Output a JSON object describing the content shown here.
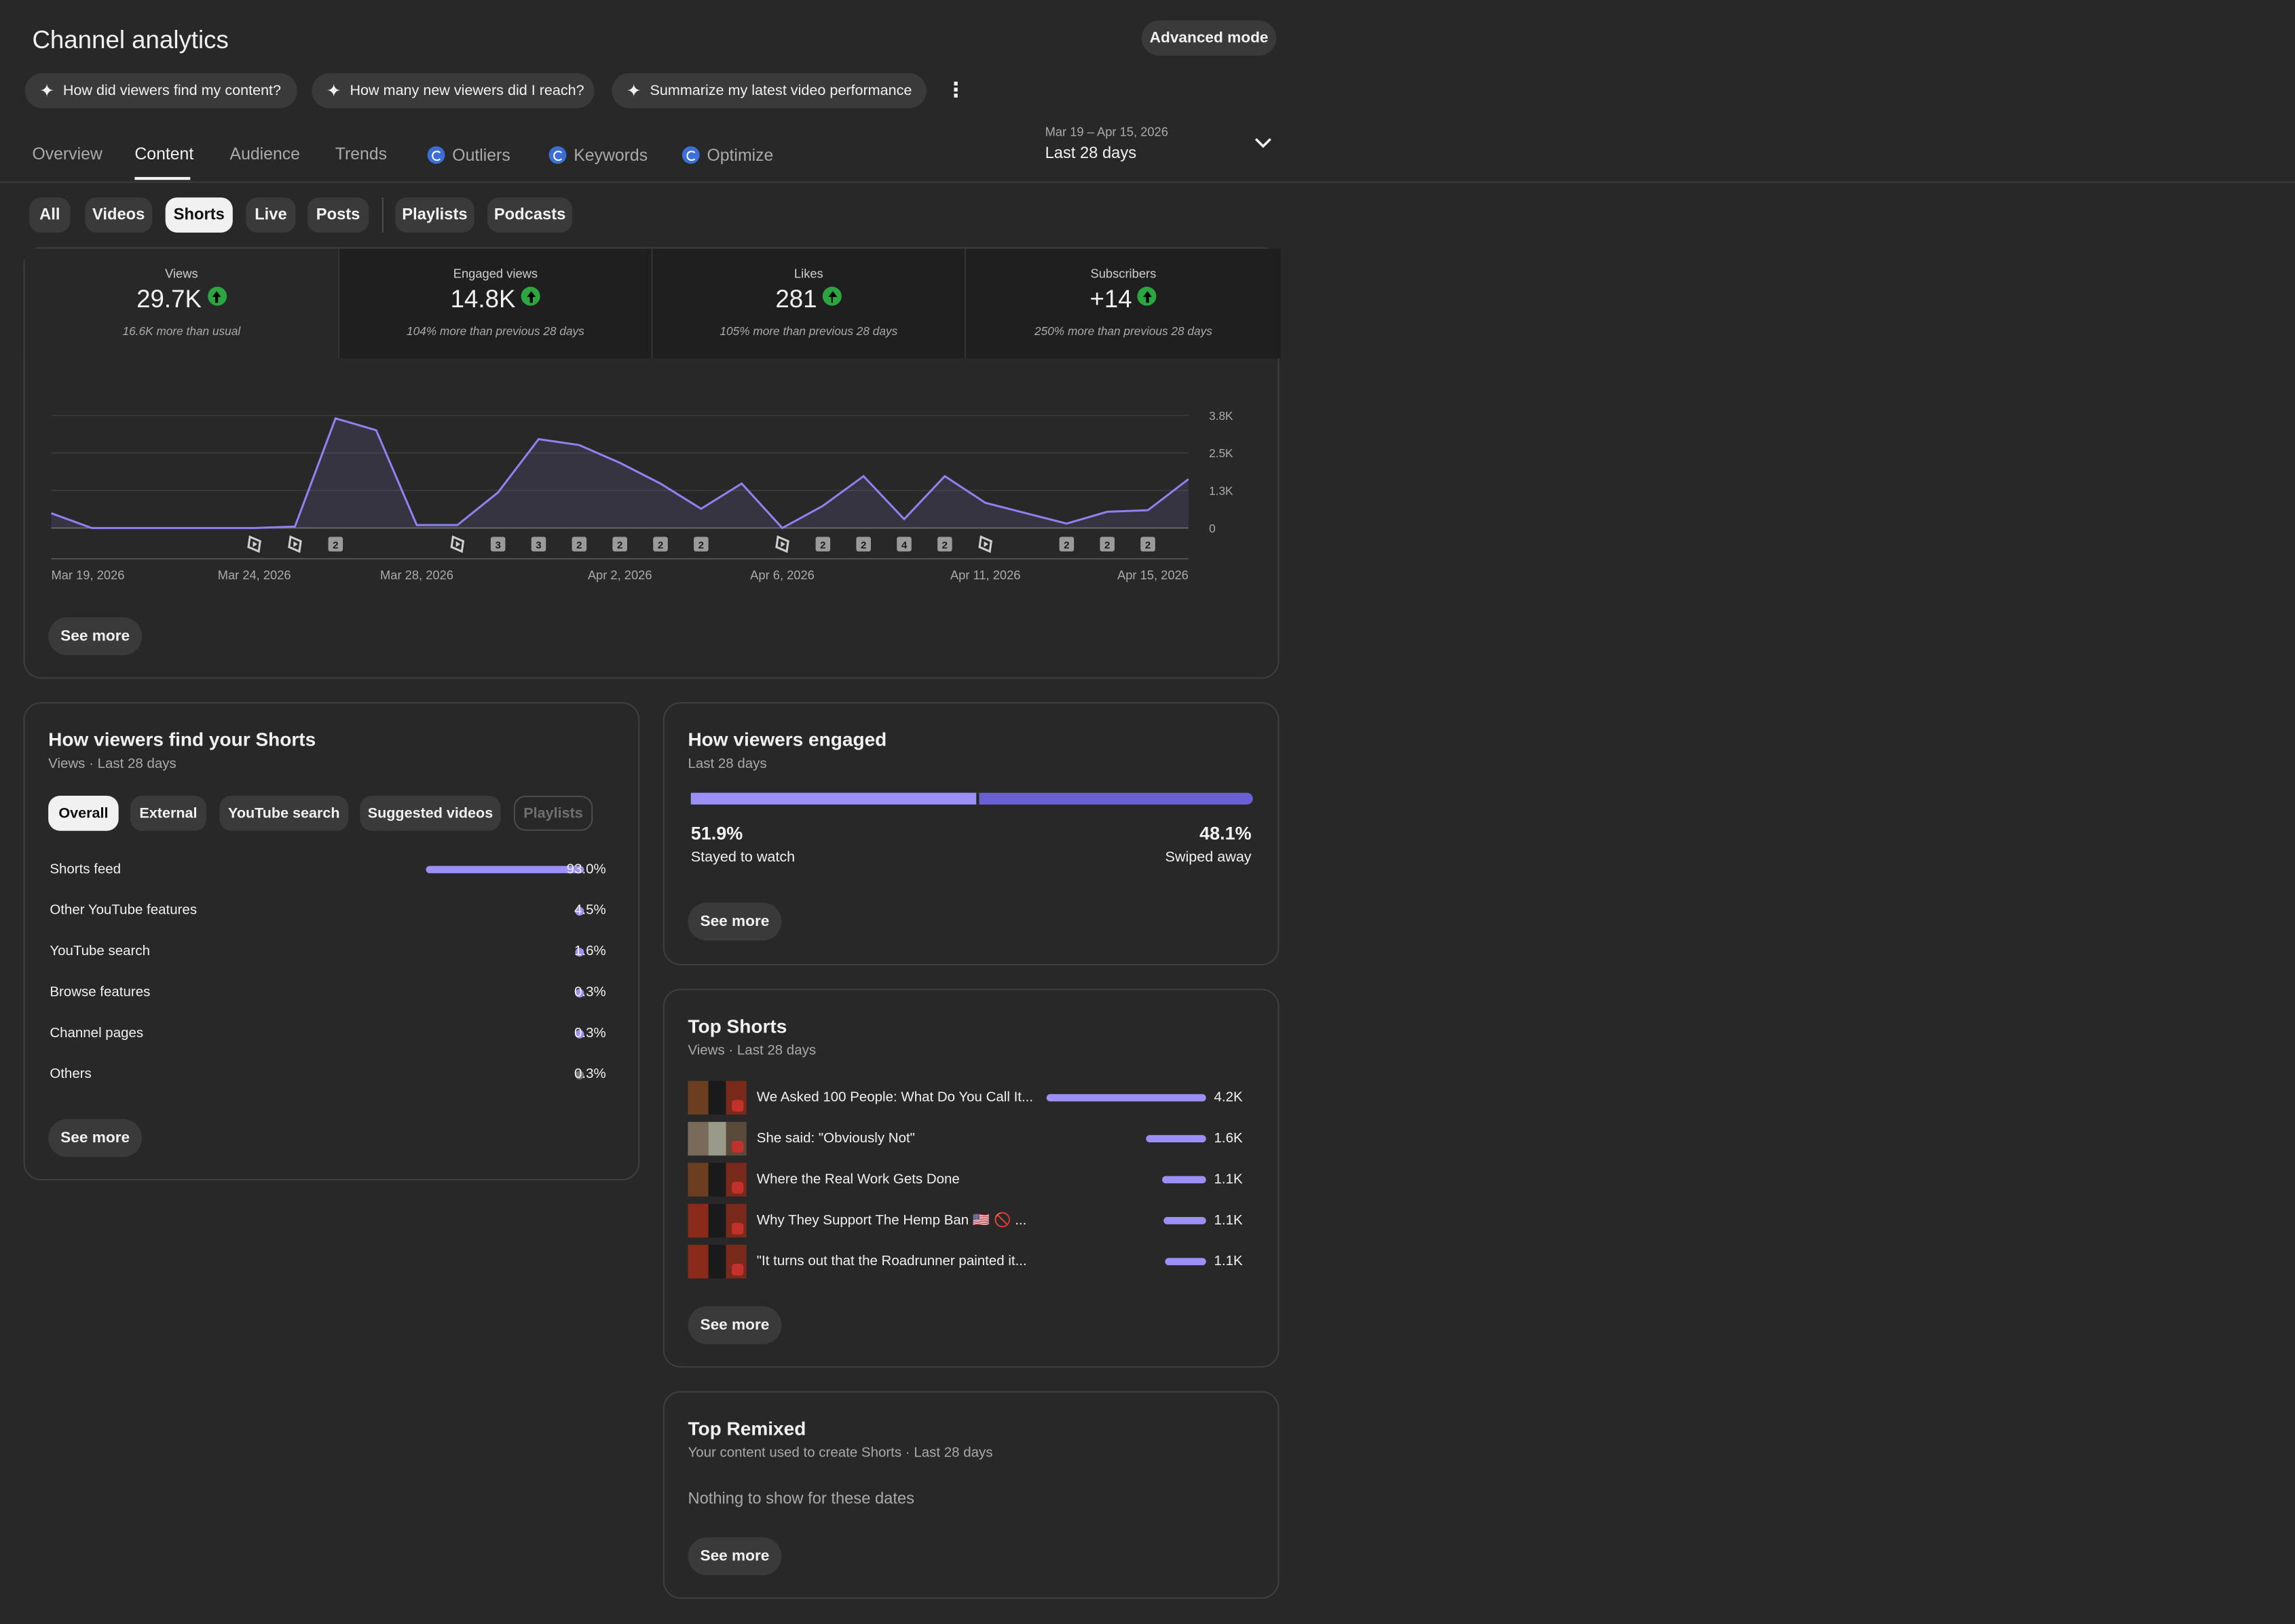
{
  "header": {
    "title": "Channel analytics",
    "advanced_mode": "Advanced mode"
  },
  "suggestions": [
    "How did viewers find my content?",
    "How many new viewers did I reach?",
    "Summarize my latest video performance"
  ],
  "tabs": [
    "Overview",
    "Content",
    "Audience",
    "Trends",
    "Outliers",
    "Keywords",
    "Optimize"
  ],
  "active_tab": "Content",
  "date_range": {
    "range": "Mar 19 – Apr 15, 2026",
    "label": "Last 28 days"
  },
  "filters": [
    "All",
    "Videos",
    "Shorts",
    "Live",
    "Posts",
    "Playlists",
    "Podcasts"
  ],
  "active_filter": "Shorts",
  "metrics": [
    {
      "label": "Views",
      "value": "29.7K",
      "note": "16.6K more than usual"
    },
    {
      "label": "Engaged views",
      "value": "14.8K",
      "note": "104% more than previous 28 days"
    },
    {
      "label": "Likes",
      "value": "281",
      "note": "105% more than previous 28 days"
    },
    {
      "label": "Subscribers",
      "value": "+14",
      "note": "250% more than previous 28 days"
    }
  ],
  "chart_data": {
    "type": "area",
    "series": [
      {
        "values": [
          500,
          0,
          0,
          0,
          0,
          0,
          50,
          3700,
          3300,
          100,
          100,
          1200,
          3000,
          2800,
          2200,
          1500,
          650,
          1500,
          0,
          750,
          1750,
          300,
          1750,
          850,
          500,
          150,
          550,
          600,
          1650
        ]
      }
    ],
    "x_tick_labels": [
      "Mar 19, 2026",
      "Mar 24, 2026",
      "Mar 28, 2026",
      "Apr 2, 2026",
      "Apr 6, 2026",
      "Apr 11, 2026",
      "Apr 15, 2026"
    ],
    "y_tick_labels": [
      "0",
      "1.3K",
      "2.5K",
      "3.8K"
    ],
    "ylim": [
      0,
      3800
    ],
    "grid": true,
    "publish_markers": [
      {
        "day": 5,
        "label": "shorts-icon"
      },
      {
        "day": 6,
        "label": "shorts-icon"
      },
      {
        "day": 7,
        "label": "2"
      },
      {
        "day": 10,
        "label": "shorts-icon"
      },
      {
        "day": 11,
        "label": "3"
      },
      {
        "day": 12,
        "label": "3"
      },
      {
        "day": 13,
        "label": "2"
      },
      {
        "day": 14,
        "label": "2"
      },
      {
        "day": 15,
        "label": "2"
      },
      {
        "day": 16,
        "label": "2"
      },
      {
        "day": 18,
        "label": "shorts-icon"
      },
      {
        "day": 19,
        "label": "2"
      },
      {
        "day": 20,
        "label": "2"
      },
      {
        "day": 21,
        "label": "4"
      },
      {
        "day": 22,
        "label": "2"
      },
      {
        "day": 23,
        "label": "shorts-icon"
      },
      {
        "day": 25,
        "label": "2"
      },
      {
        "day": 26,
        "label": "2"
      },
      {
        "day": 27,
        "label": "2"
      }
    ]
  },
  "see_more": "See more",
  "find": {
    "title": "How viewers find your Shorts",
    "subtitle": "Views · Last 28 days",
    "chips": [
      "Overall",
      "External",
      "YouTube search",
      "Suggested videos",
      "Playlists"
    ],
    "sources": [
      {
        "name": "Shorts feed",
        "pct": "93.0%",
        "value": 93.0
      },
      {
        "name": "Other YouTube features",
        "pct": "4.5%",
        "value": 4.5
      },
      {
        "name": "YouTube search",
        "pct": "1.6%",
        "value": 1.6
      },
      {
        "name": "Browse features",
        "pct": "0.3%",
        "value": 0.3
      },
      {
        "name": "Channel pages",
        "pct": "0.3%",
        "value": 0.3
      },
      {
        "name": "Others",
        "pct": "0.3%",
        "value": 0.3
      }
    ]
  },
  "engaged": {
    "title": "How viewers engaged",
    "subtitle": "Last 28 days",
    "stayed_pct": "51.9%",
    "stayed_label": "Stayed to watch",
    "swiped_pct": "48.1%",
    "swiped_label": "Swiped away",
    "stayed_value": 51.9
  },
  "top_shorts": {
    "title": "Top Shorts",
    "subtitle": "Views · Last 28 days",
    "items": [
      {
        "title": "We Asked 100 People: What Do You Call It...",
        "views": "4.2K",
        "value": 4.2
      },
      {
        "title": "She said: \"Obviously Not\"",
        "views": "1.6K",
        "value": 1.6
      },
      {
        "title": "Where the Real Work Gets Done",
        "views": "1.1K",
        "value": 1.1
      },
      {
        "title": "Why They Support The Hemp Ban 🇺🇸 🚫 ...",
        "views": "1.1K",
        "value": 1.1
      },
      {
        "title": "\"It turns out that the Roadrunner painted it...",
        "views": "1.1K",
        "value": 1.1
      }
    ]
  },
  "remixed": {
    "title": "Top Remixed",
    "subtitle": "Your content used to create Shorts · Last 28 days",
    "empty": "Nothing to show for these dates"
  },
  "colors": {
    "accent": "#9c8ff5",
    "accent_dark": "#6b5fd6",
    "positive": "#2ba640"
  }
}
